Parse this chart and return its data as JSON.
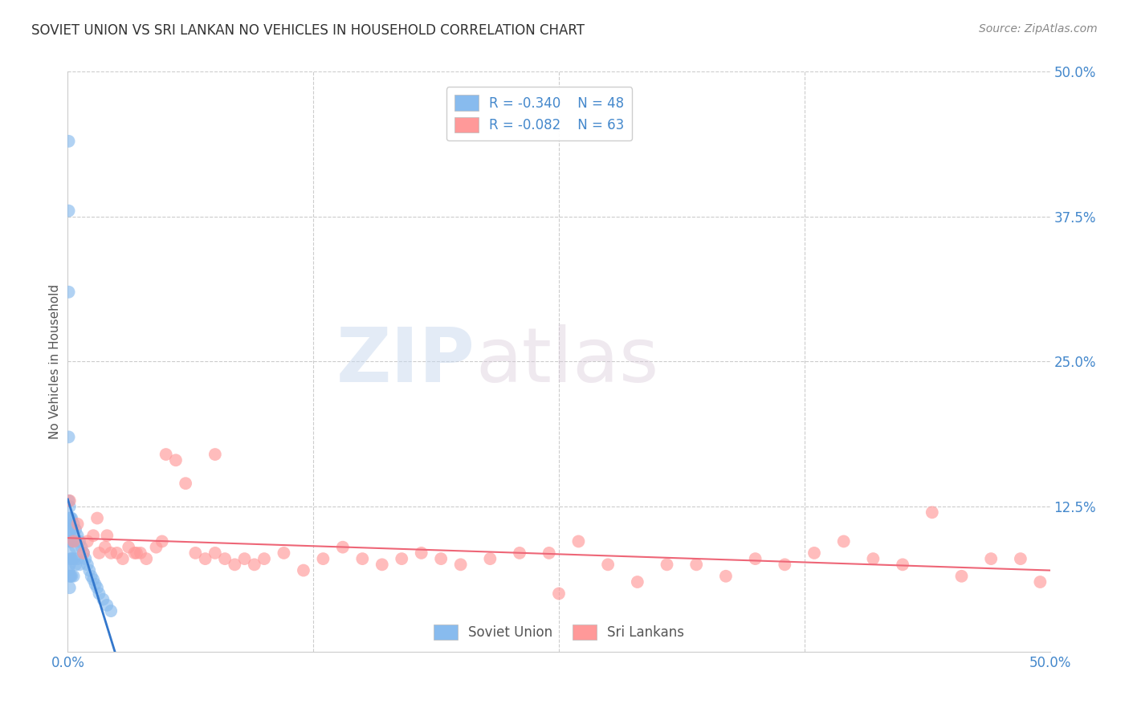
{
  "title": "SOVIET UNION VS SRI LANKAN NO VEHICLES IN HOUSEHOLD CORRELATION CHART",
  "source": "Source: ZipAtlas.com",
  "ylabel": "No Vehicles in Household",
  "xlim": [
    0.0,
    0.5
  ],
  "ylim": [
    0.0,
    0.5
  ],
  "ytick_labels": [
    "12.5%",
    "25.0%",
    "37.5%",
    "50.0%"
  ],
  "ytick_values": [
    0.125,
    0.25,
    0.375,
    0.5
  ],
  "xtick_left_label": "0.0%",
  "xtick_right_label": "50.0%",
  "xtick_left_val": 0.0,
  "xtick_right_val": 0.5,
  "soviet_R": -0.34,
  "soviet_N": 48,
  "srilanka_R": -0.082,
  "srilanka_N": 63,
  "soviet_color": "#88bbee",
  "soviet_line_color": "#3377cc",
  "srilanka_color": "#ff9999",
  "srilanka_line_color": "#ee6677",
  "background_color": "#ffffff",
  "grid_color": "#cccccc",
  "watermark_zip": "ZIP",
  "watermark_atlas": "atlas",
  "legend_label_soviet": "Soviet Union",
  "legend_label_srilanka": "Sri Lankans",
  "tick_color": "#4488cc",
  "soviet_x": [
    0.0005,
    0.0005,
    0.0005,
    0.0005,
    0.0005,
    0.0005,
    0.001,
    0.001,
    0.001,
    0.001,
    0.001,
    0.001,
    0.001,
    0.001,
    0.0015,
    0.0015,
    0.0015,
    0.0015,
    0.0015,
    0.002,
    0.002,
    0.002,
    0.002,
    0.002,
    0.003,
    0.003,
    0.003,
    0.003,
    0.004,
    0.004,
    0.004,
    0.005,
    0.005,
    0.006,
    0.006,
    0.007,
    0.008,
    0.009,
    0.01,
    0.011,
    0.012,
    0.013,
    0.014,
    0.015,
    0.016,
    0.018,
    0.02,
    0.022
  ],
  "soviet_y": [
    0.44,
    0.38,
    0.31,
    0.185,
    0.13,
    0.07,
    0.125,
    0.115,
    0.105,
    0.095,
    0.085,
    0.075,
    0.065,
    0.055,
    0.115,
    0.105,
    0.095,
    0.08,
    0.065,
    0.115,
    0.105,
    0.095,
    0.08,
    0.065,
    0.11,
    0.095,
    0.08,
    0.065,
    0.105,
    0.09,
    0.075,
    0.1,
    0.08,
    0.095,
    0.075,
    0.09,
    0.085,
    0.08,
    0.075,
    0.07,
    0.065,
    0.062,
    0.058,
    0.055,
    0.05,
    0.045,
    0.04,
    0.035
  ],
  "srilanka_x": [
    0.001,
    0.003,
    0.005,
    0.008,
    0.01,
    0.013,
    0.016,
    0.019,
    0.022,
    0.025,
    0.028,
    0.031,
    0.034,
    0.037,
    0.04,
    0.045,
    0.05,
    0.055,
    0.06,
    0.065,
    0.07,
    0.075,
    0.08,
    0.085,
    0.09,
    0.095,
    0.1,
    0.11,
    0.12,
    0.13,
    0.14,
    0.15,
    0.16,
    0.17,
    0.18,
    0.19,
    0.2,
    0.215,
    0.23,
    0.245,
    0.26,
    0.275,
    0.29,
    0.305,
    0.32,
    0.335,
    0.35,
    0.365,
    0.38,
    0.395,
    0.41,
    0.425,
    0.44,
    0.455,
    0.47,
    0.485,
    0.495,
    0.015,
    0.02,
    0.035,
    0.048,
    0.075,
    0.25
  ],
  "srilanka_y": [
    0.13,
    0.095,
    0.11,
    0.085,
    0.095,
    0.1,
    0.085,
    0.09,
    0.085,
    0.085,
    0.08,
    0.09,
    0.085,
    0.085,
    0.08,
    0.09,
    0.17,
    0.165,
    0.145,
    0.085,
    0.08,
    0.085,
    0.08,
    0.075,
    0.08,
    0.075,
    0.08,
    0.085,
    0.07,
    0.08,
    0.09,
    0.08,
    0.075,
    0.08,
    0.085,
    0.08,
    0.075,
    0.08,
    0.085,
    0.085,
    0.095,
    0.075,
    0.06,
    0.075,
    0.075,
    0.065,
    0.08,
    0.075,
    0.085,
    0.095,
    0.08,
    0.075,
    0.12,
    0.065,
    0.08,
    0.08,
    0.06,
    0.115,
    0.1,
    0.085,
    0.095,
    0.17,
    0.05
  ]
}
